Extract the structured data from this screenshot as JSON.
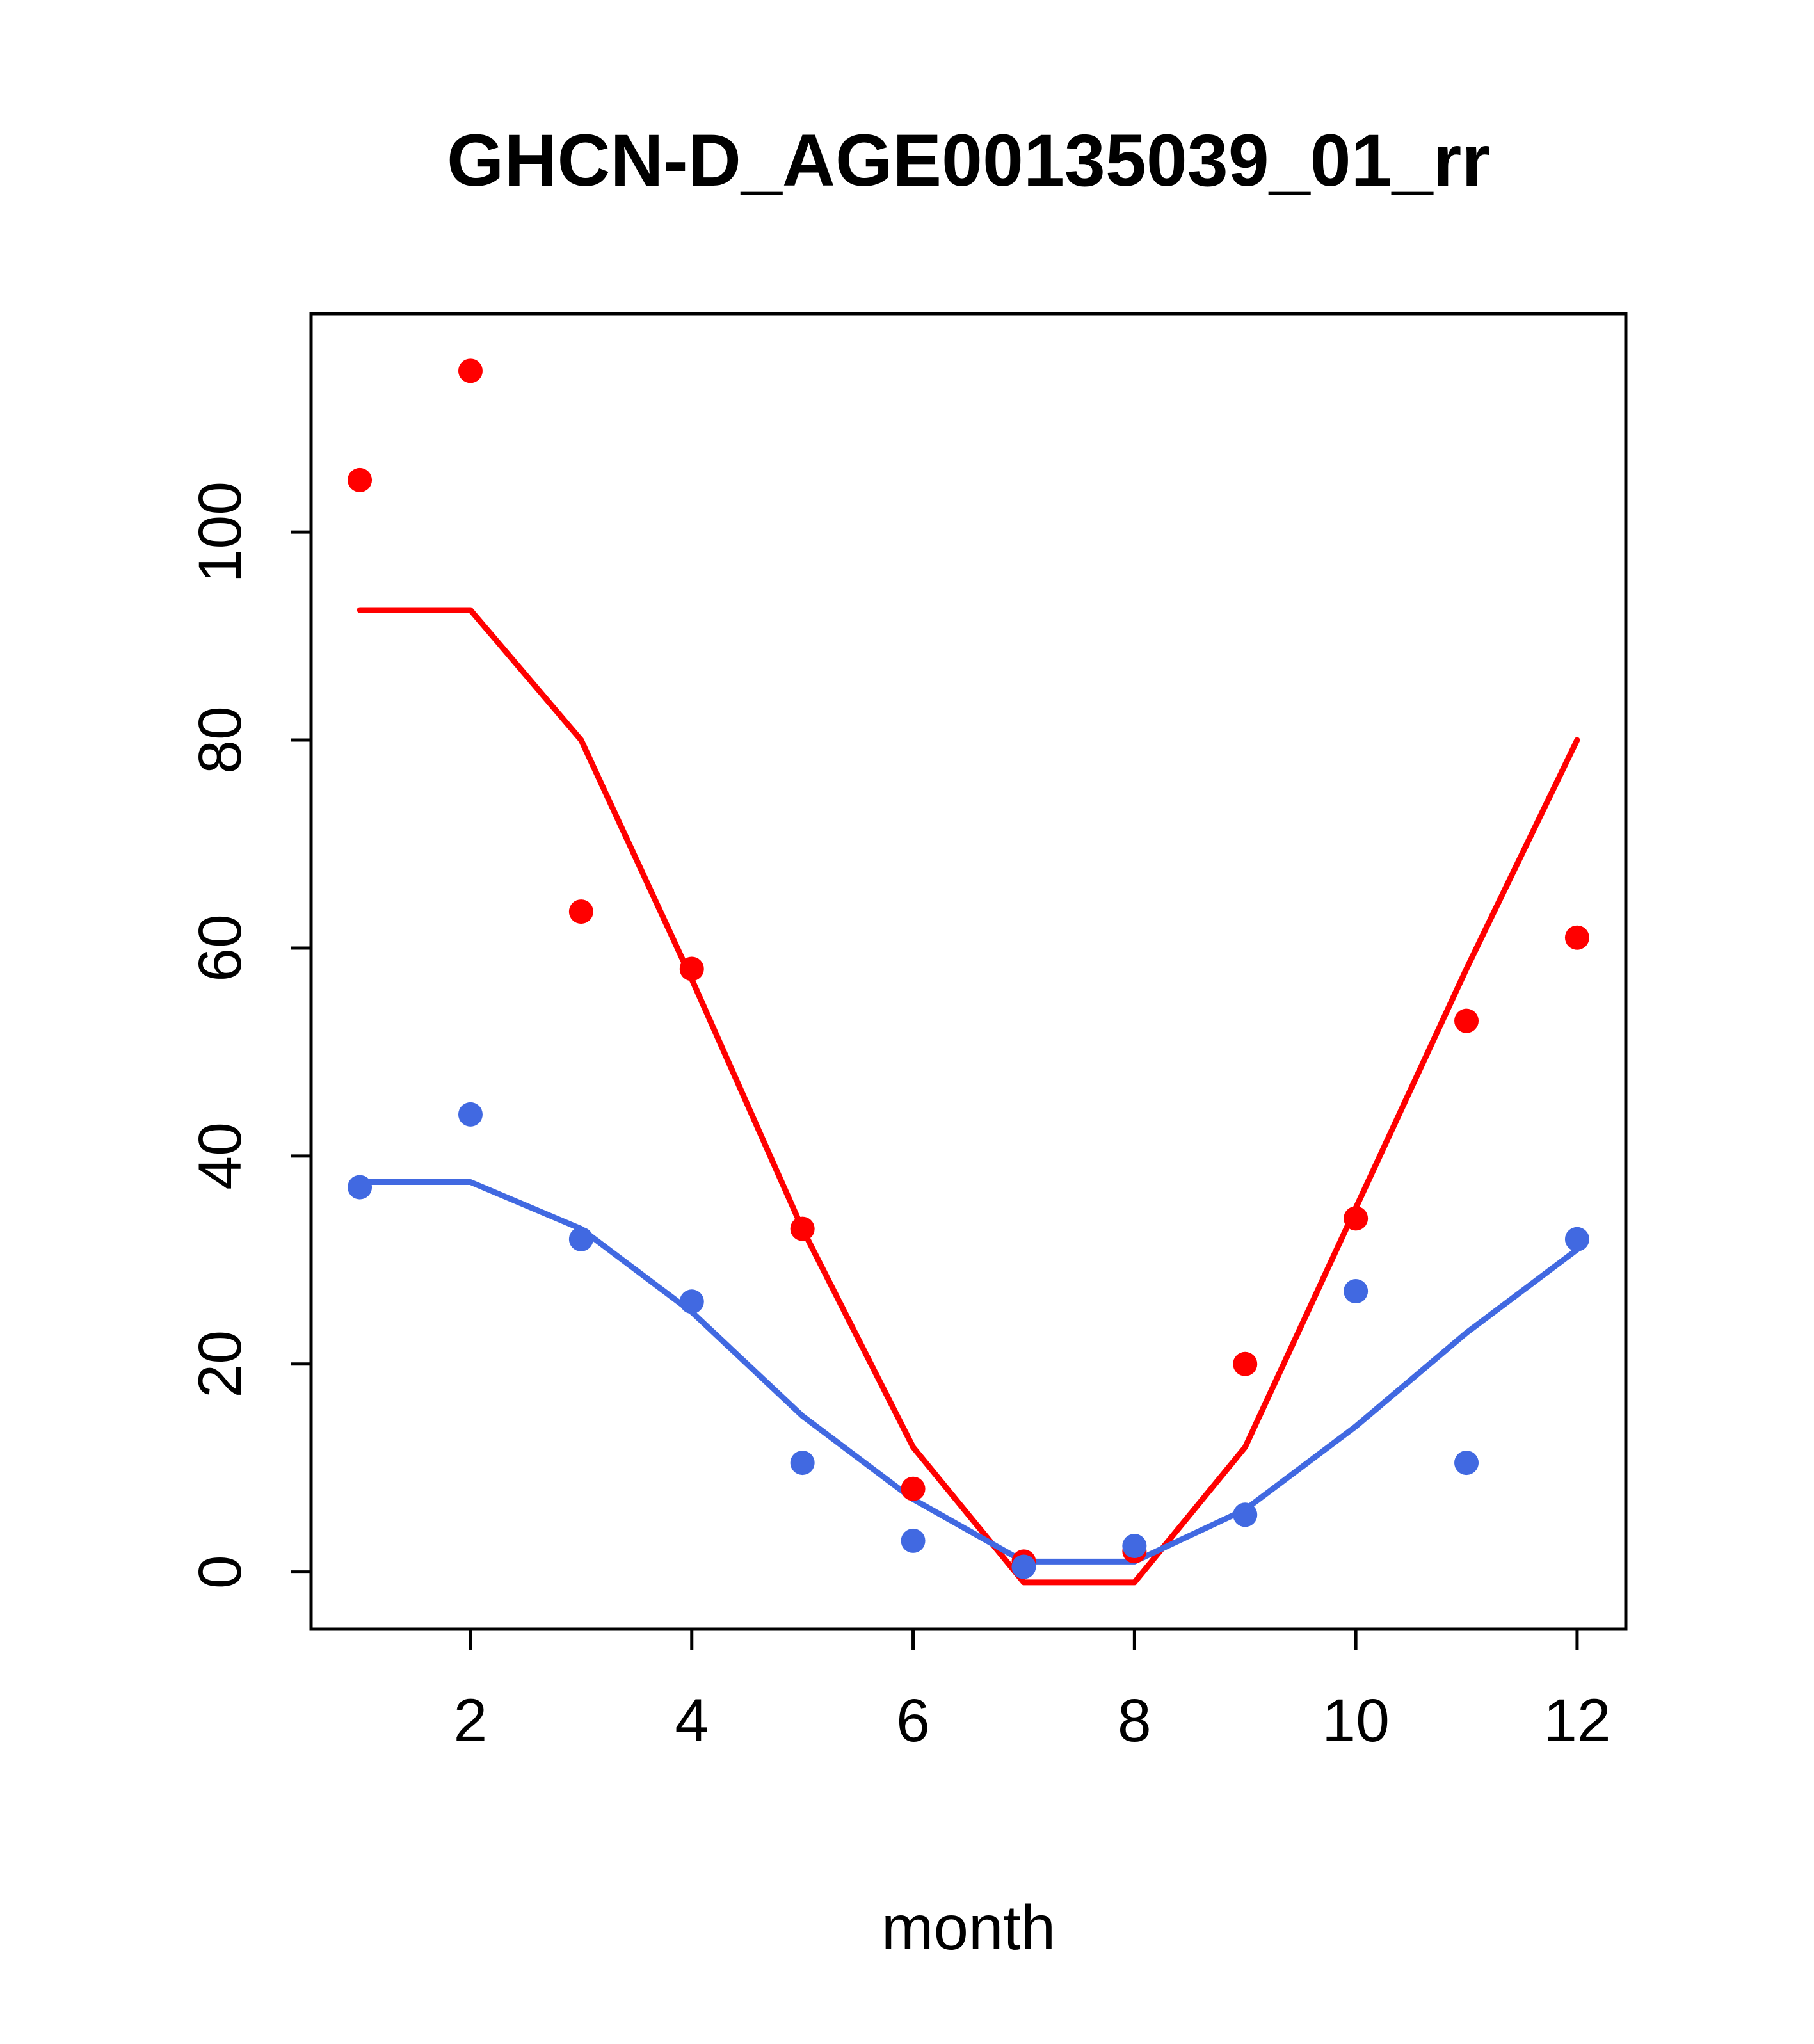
{
  "page": {
    "background": "#ffffff",
    "text_color": "#000000"
  },
  "chart_data": {
    "type": "scatter",
    "title": "GHCN-D_AGE00135039_01_rr",
    "xlabel": "month",
    "ylabel": "",
    "x": [
      1,
      2,
      3,
      4,
      5,
      6,
      7,
      8,
      9,
      10,
      11,
      12
    ],
    "xlim": [
      0.56,
      12.44
    ],
    "ylim": [
      -5.5,
      121
    ],
    "xticks": [
      2,
      4,
      6,
      8,
      10,
      12
    ],
    "yticks": [
      0,
      20,
      40,
      60,
      80,
      100
    ],
    "grid": false,
    "legend_position": "none",
    "colors": {
      "red_series": "#ff0000",
      "blue_series": "#4169e1",
      "axis": "#000000"
    },
    "series": [
      {
        "name": "red-monthly-points",
        "kind": "points",
        "color": "#ff0000",
        "values": [
          105,
          115.5,
          63.5,
          58,
          33,
          8,
          1,
          2,
          20,
          34,
          53,
          61
        ]
      },
      {
        "name": "red-fit-line",
        "kind": "line",
        "color": "#ff0000",
        "values": [
          92.5,
          92.5,
          80,
          57,
          33,
          12,
          -1,
          -1,
          12,
          35,
          58,
          80
        ]
      },
      {
        "name": "blue-monthly-points",
        "kind": "points",
        "color": "#4169e1",
        "values": [
          37,
          44,
          32,
          26,
          10.5,
          3,
          0.5,
          2.5,
          5.5,
          27,
          10.5,
          32
        ]
      },
      {
        "name": "blue-fit-line",
        "kind": "line",
        "color": "#4169e1",
        "values": [
          37.5,
          37.5,
          33,
          25,
          15,
          7,
          1,
          1,
          6,
          14,
          23,
          31
        ]
      }
    ]
  }
}
